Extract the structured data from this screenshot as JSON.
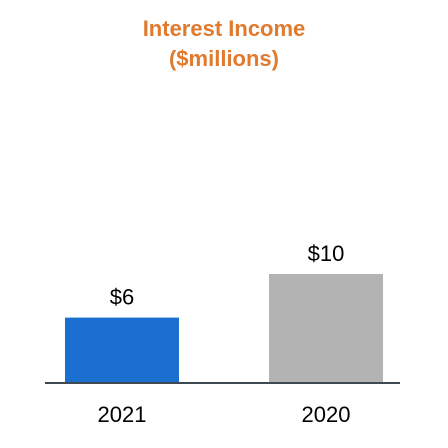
{
  "chart_data": {
    "type": "bar",
    "title": "Interest Income",
    "subtitle": "($millions)",
    "categories": [
      "2021",
      "2020"
    ],
    "values": [
      6,
      10
    ],
    "value_labels": [
      "$6",
      "$10"
    ],
    "bar_colors": [
      "#1a6fd0",
      "#b3b3b3"
    ],
    "xlabel": "",
    "ylabel": "",
    "ylim": [
      0,
      10
    ],
    "grid": false,
    "legend": "none"
  },
  "colors": {
    "title": "#e07a2e",
    "axis": "#404850"
  }
}
